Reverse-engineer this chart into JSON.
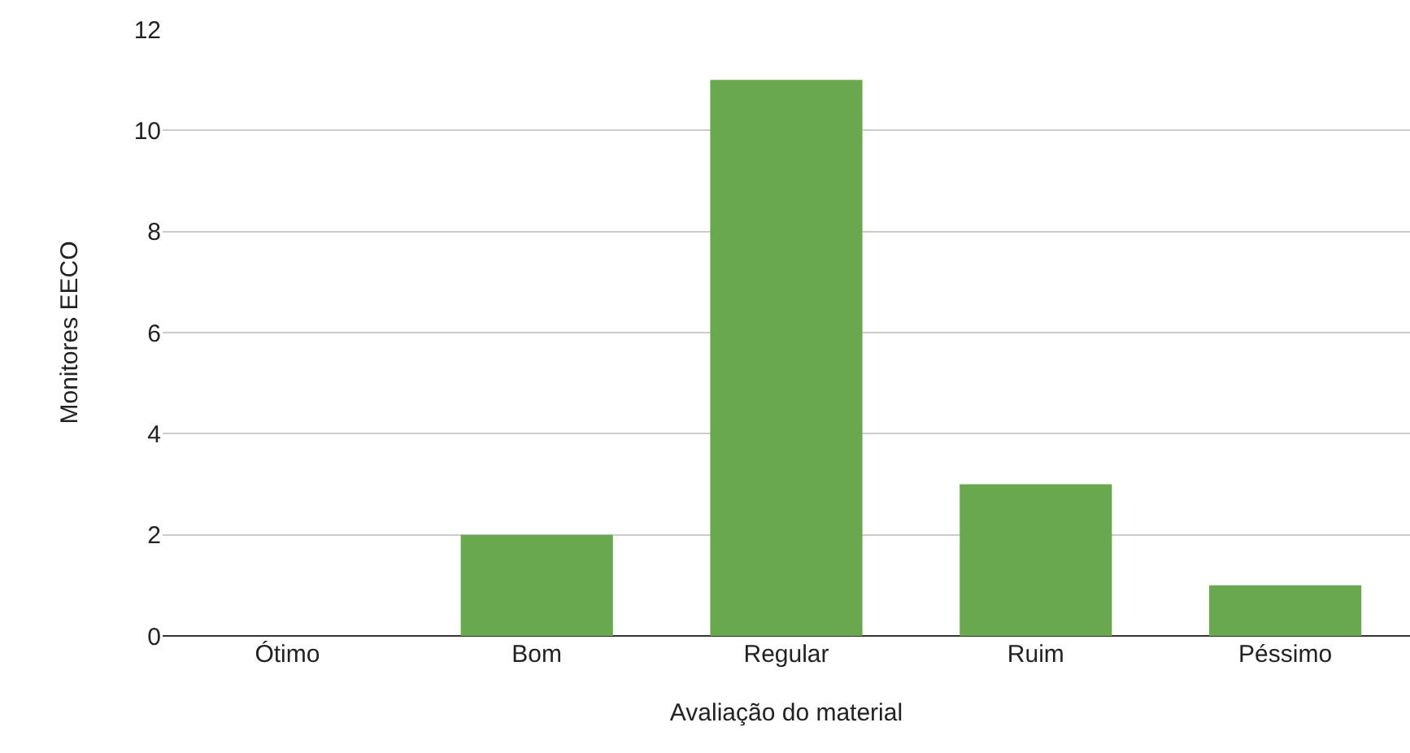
{
  "chart_data": {
    "type": "bar",
    "categories": [
      "Ótimo",
      "Bom",
      "Regular",
      "Ruim",
      "Péssimo"
    ],
    "values": [
      0,
      2,
      11,
      3,
      1
    ],
    "color": "#6aa84f",
    "xlabel": "Avaliação do material",
    "ylabel": "Monitores EECO",
    "ylim": [
      0,
      12
    ],
    "yticks": [
      0,
      2,
      4,
      6,
      8,
      10,
      12
    ],
    "grid": "y",
    "legend": false
  }
}
